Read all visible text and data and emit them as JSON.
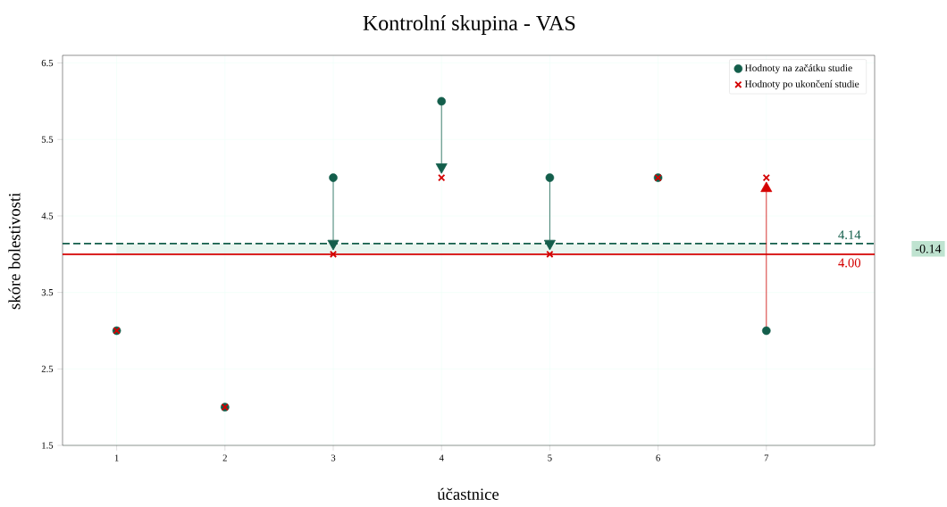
{
  "chart_data": {
    "type": "scatter",
    "title": "Kontrolní skupina - VAS",
    "xlabel": "účastnice",
    "ylabel": "skóre bolestivosti",
    "x": [
      1,
      2,
      3,
      4,
      5,
      6,
      7
    ],
    "series": [
      {
        "name": "Hodnoty na začátku studie",
        "color": "#135e4b",
        "marker": "circle",
        "values": [
          3,
          2,
          5,
          6,
          5,
          5,
          3
        ]
      },
      {
        "name": "Hodnoty po ukončení studie",
        "color": "#d40000",
        "marker": "cross",
        "values": [
          3,
          2,
          4,
          5,
          4,
          5,
          5
        ]
      }
    ],
    "xlim": [
      0.5,
      8
    ],
    "xticks": [
      1,
      2,
      3,
      4,
      5,
      6,
      7
    ],
    "ylim": [
      1.5,
      6.6
    ],
    "yticks": [
      1.5,
      2.5,
      3.5,
      4.5,
      5.5,
      6.5
    ],
    "ref_lines": [
      {
        "axis": "y",
        "value": 4.14,
        "label": "4.14",
        "color": "#135e4b",
        "line_style": "dashed"
      },
      {
        "axis": "y",
        "value": 4.0,
        "label": "4.00",
        "color": "#d40000",
        "line_style": "solid"
      }
    ],
    "bands": [
      {
        "axis": "y",
        "from": 4.0,
        "to": 4.14,
        "color": "#bfe3d0"
      }
    ],
    "annotations": [
      "-0.14"
    ],
    "grid": true,
    "legend": "top right"
  }
}
